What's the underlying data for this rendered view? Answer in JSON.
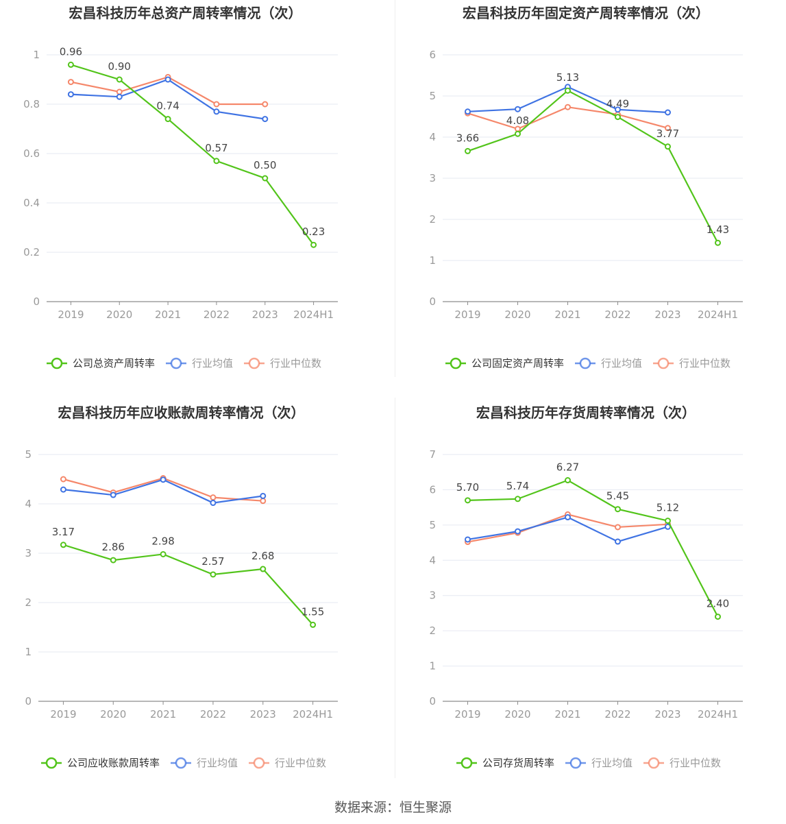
{
  "footer": {
    "source": "数据来源：恒生聚源"
  },
  "colors": {
    "company": "#52c41a",
    "avg": "#3f73e3",
    "median": "#f5876a",
    "grid": "#e6e9f2",
    "axis": "#999999"
  },
  "legend_labels": {
    "avg": "行业均值",
    "median": "行业中位数"
  },
  "chart_data": [
    {
      "type": "line",
      "title": "宏昌科技历年总资产周转率情况（次）",
      "categories": [
        "2019",
        "2020",
        "2021",
        "2022",
        "2023",
        "2024H1"
      ],
      "ylim": [
        0,
        1
      ],
      "yticks": [
        "0",
        "0.2",
        "0.4",
        "0.6",
        "0.8",
        "1"
      ],
      "series": [
        {
          "name": "公司总资产周转率",
          "key": "company",
          "values": [
            0.96,
            0.9,
            0.74,
            0.57,
            0.5,
            0.23
          ],
          "labels": [
            "0.96",
            "0.90",
            "0.74",
            "0.57",
            "0.50",
            "0.23"
          ]
        },
        {
          "name": "行业均值",
          "key": "avg",
          "values": [
            0.84,
            0.83,
            0.9,
            0.77,
            0.74,
            null
          ]
        },
        {
          "name": "行业中位数",
          "key": "median",
          "values": [
            0.89,
            0.85,
            0.91,
            0.8,
            0.8,
            null
          ]
        }
      ],
      "grid": true,
      "legend": "bottom"
    },
    {
      "type": "line",
      "title": "宏昌科技历年固定资产周转率情况（次）",
      "categories": [
        "2019",
        "2020",
        "2021",
        "2022",
        "2023",
        "2024H1"
      ],
      "ylim": [
        0,
        6
      ],
      "yticks": [
        "0",
        "1",
        "2",
        "3",
        "4",
        "5",
        "6"
      ],
      "series": [
        {
          "name": "公司固定资产周转率",
          "key": "company",
          "values": [
            3.66,
            4.08,
            5.13,
            4.49,
            3.77,
            1.43
          ],
          "labels": [
            "3.66",
            "4.08",
            "5.13",
            "4.49",
            "3.77",
            "1.43"
          ]
        },
        {
          "name": "行业均值",
          "key": "avg",
          "values": [
            4.62,
            4.68,
            5.22,
            4.67,
            4.6,
            null
          ]
        },
        {
          "name": "行业中位数",
          "key": "median",
          "values": [
            4.58,
            4.2,
            4.73,
            4.55,
            4.22,
            null
          ]
        }
      ],
      "grid": true,
      "legend": "bottom"
    },
    {
      "type": "line",
      "title": "宏昌科技历年应收账款周转率情况（次）",
      "categories": [
        "2019",
        "2020",
        "2021",
        "2022",
        "2023",
        "2024H1"
      ],
      "ylim": [
        0,
        5
      ],
      "yticks": [
        "0",
        "1",
        "2",
        "3",
        "4",
        "5"
      ],
      "series": [
        {
          "name": "公司应收账款周转率",
          "key": "company",
          "values": [
            3.17,
            2.86,
            2.98,
            2.57,
            2.68,
            1.55
          ],
          "labels": [
            "3.17",
            "2.86",
            "2.98",
            "2.57",
            "2.68",
            "1.55"
          ]
        },
        {
          "name": "行业均值",
          "key": "avg",
          "values": [
            4.29,
            4.18,
            4.49,
            4.02,
            4.16,
            null
          ]
        },
        {
          "name": "行业中位数",
          "key": "median",
          "values": [
            4.5,
            4.23,
            4.52,
            4.13,
            4.06,
            null
          ]
        }
      ],
      "grid": true,
      "legend": "bottom"
    },
    {
      "type": "line",
      "title": "宏昌科技历年存货周转率情况（次）",
      "categories": [
        "2019",
        "2020",
        "2021",
        "2022",
        "2023",
        "2024H1"
      ],
      "ylim": [
        0,
        7
      ],
      "yticks": [
        "0",
        "1",
        "2",
        "3",
        "4",
        "5",
        "6",
        "7"
      ],
      "series": [
        {
          "name": "公司存货周转率",
          "key": "company",
          "values": [
            5.7,
            5.74,
            6.27,
            5.45,
            5.12,
            2.4
          ],
          "labels": [
            "5.70",
            "5.74",
            "6.27",
            "5.45",
            "5.12",
            "2.40"
          ]
        },
        {
          "name": "行业均值",
          "key": "avg",
          "values": [
            4.59,
            4.82,
            5.22,
            4.53,
            4.95,
            null
          ]
        },
        {
          "name": "行业中位数",
          "key": "median",
          "values": [
            4.52,
            4.78,
            5.3,
            4.94,
            5.02,
            null
          ]
        }
      ],
      "grid": true,
      "legend": "bottom"
    }
  ]
}
